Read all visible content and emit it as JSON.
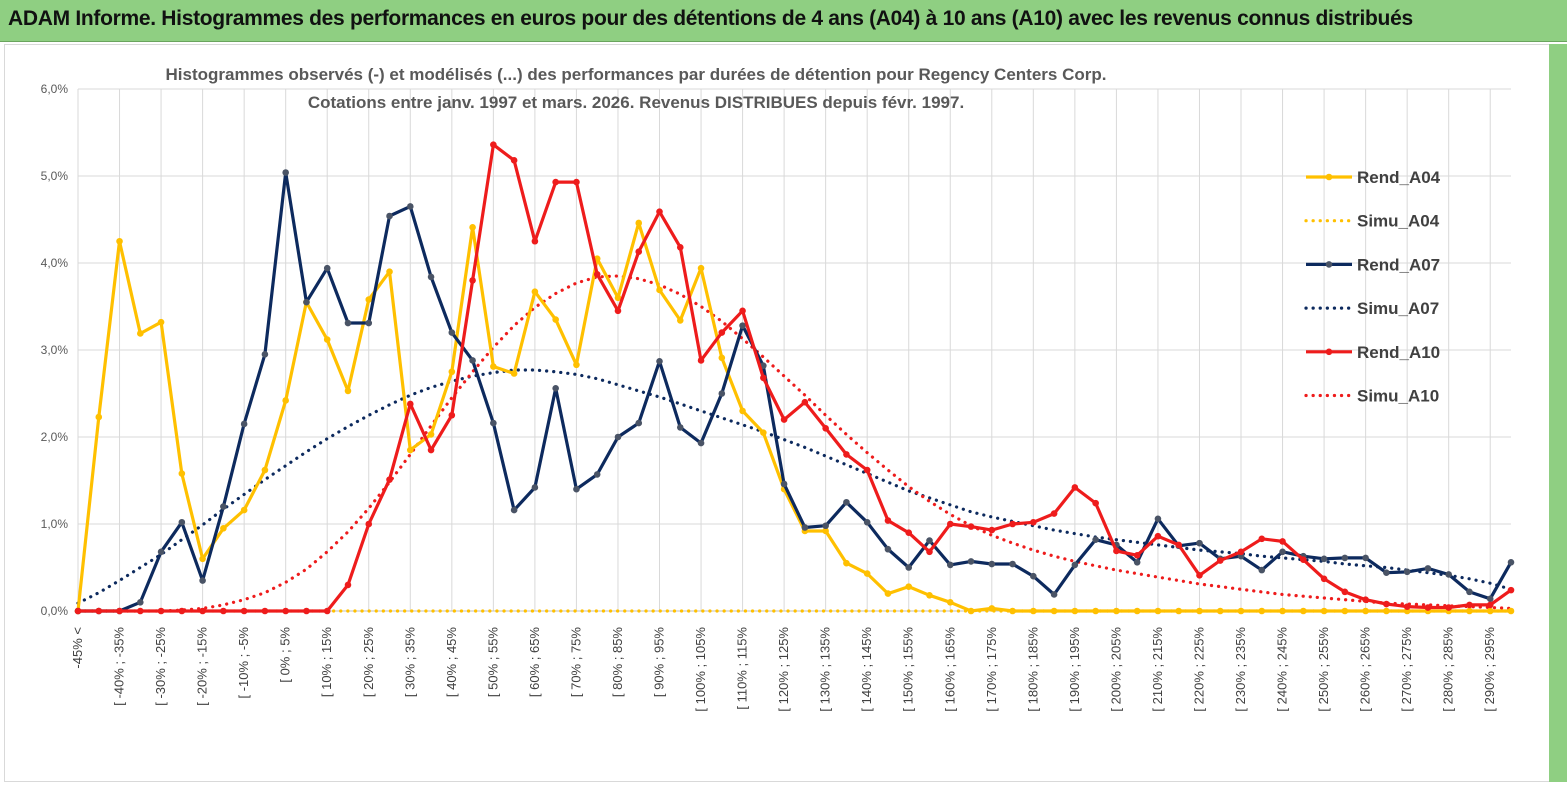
{
  "header": {
    "title": "ADAM Informe. Histogrammes des performances en euros pour des détentions de 4 ans (A04) à 10 ans (A10) avec les revenus connus distribués"
  },
  "colors": {
    "banner": "#8fcf82",
    "A04": "#ffc000",
    "A07": "#0d2a5e",
    "A10": "#ee1c1c",
    "grid": "#d9d9d9"
  },
  "chart_data": {
    "type": "line",
    "title": "Histogrammes observés (-) et modélisés (...)  des performances par durées de détention pour Regency  Centers Corp.",
    "subtitle": "Cotations entre janv. 1997 et mars. 2026. Revenus DISTRIBUES depuis févr. 1997.",
    "xlabel": "",
    "ylabel": "",
    "ylim": [
      0,
      6
    ],
    "yticks": [
      "0,0%",
      "1,0%",
      "2,0%",
      "3,0%",
      "4,0%",
      "5,0%",
      "6,0%"
    ],
    "x_tick_labels": [
      "-45% <",
      "[ -40% ; -35%",
      "[ -30% ; -25%",
      "[ -20% ; -15%",
      "[ -10% ; -5%",
      "[ 0% ; 5%",
      "[ 10% ; 15%",
      "[ 20% ; 25%",
      "[ 30% ; 35%",
      "[ 40% ; 45%",
      "[ 50% ; 55%",
      "[ 60% ; 65%",
      "[ 70% ; 75%",
      "[ 80% ; 85%",
      "[ 90% ; 95%",
      "[ 100% ; 105%",
      "[ 110% ; 115%",
      "[ 120% ; 125%",
      "[ 130% ; 135%",
      "[ 140% ; 145%",
      "[ 150% ; 155%",
      "[ 160% ; 165%",
      "[ 170% ; 175%",
      "[ 180% ; 185%",
      "[ 190% ; 195%",
      "[ 200% ; 205%",
      "[ 210% ; 215%",
      "[ 220% ; 225%",
      "[ 230% ; 235%",
      "[ 240% ; 245%",
      "[ 250% ; 255%",
      "[ 260% ; 265%",
      "[ 270% ; 275%",
      "[ 280% ; 285%",
      "[ 290% ; 295%"
    ],
    "n_points": 70,
    "legend_position": "right",
    "series": [
      {
        "name": "Rend_A04",
        "key": "A04",
        "style": "solid",
        "markers": true,
        "values": [
          0,
          2.23,
          4.25,
          3.19,
          3.32,
          1.58,
          0.6,
          0.95,
          1.16,
          1.62,
          2.42,
          3.55,
          3.12,
          2.53,
          3.58,
          3.9,
          1.85,
          2.03,
          2.75,
          4.41,
          2.81,
          2.73,
          3.67,
          3.35,
          2.83,
          4.05,
          3.6,
          4.46,
          3.69,
          3.34,
          3.94,
          2.91,
          2.3,
          2.05,
          1.4,
          0.92,
          0.92,
          0.55,
          0.43,
          0.2,
          0.28,
          0.18,
          0.1,
          0,
          0.03,
          0,
          0,
          0,
          0,
          0,
          0,
          0,
          0,
          0,
          0,
          0,
          0,
          0,
          0,
          0,
          0,
          0,
          0,
          0,
          0,
          0,
          0,
          0,
          0,
          0
        ]
      },
      {
        "name": "Simu_A04",
        "key": "A04",
        "style": "dotted",
        "markers": false,
        "values": [
          0,
          0,
          0,
          0,
          0,
          0,
          0,
          0,
          0,
          0,
          0,
          0,
          0,
          0,
          0,
          0,
          0,
          0,
          0,
          0,
          0,
          0,
          0,
          0,
          0,
          0,
          0,
          0,
          0,
          0,
          0,
          0,
          0,
          0,
          0,
          0,
          0,
          0,
          0,
          0,
          0,
          0,
          0,
          0,
          0,
          0,
          0,
          0,
          0,
          0,
          0,
          0,
          0,
          0,
          0,
          0,
          0,
          0,
          0,
          0,
          0,
          0,
          0,
          0,
          0,
          0,
          0,
          0,
          0,
          0
        ]
      },
      {
        "name": "Rend_A07",
        "key": "A07",
        "style": "solid",
        "markers": true,
        "values": [
          0,
          0,
          0,
          0.1,
          0.68,
          1.02,
          0.35,
          1.2,
          2.15,
          2.95,
          5.04,
          3.55,
          3.94,
          3.31,
          3.31,
          4.54,
          4.65,
          3.84,
          3.2,
          2.88,
          2.16,
          1.16,
          1.42,
          2.56,
          1.4,
          1.57,
          2.0,
          2.16,
          2.87,
          2.11,
          1.93,
          2.5,
          3.28,
          2.82,
          1.46,
          0.96,
          0.98,
          1.25,
          1.02,
          0.71,
          0.5,
          0.81,
          0.53,
          0.57,
          0.54,
          0.54,
          0.4,
          0.19,
          0.53,
          0.82,
          0.76,
          0.56,
          1.06,
          0.75,
          0.78,
          0.6,
          0.63,
          0.47,
          0.68,
          0.63,
          0.6,
          0.61,
          0.61,
          0.44,
          0.45,
          0.49,
          0.42,
          0.22,
          0.14,
          0.56
        ]
      },
      {
        "name": "Simu_A07",
        "key": "A07",
        "style": "dotted",
        "markers": false,
        "values": [
          0.09,
          0.21,
          0.35,
          0.5,
          0.65,
          0.82,
          0.99,
          1.17,
          1.34,
          1.51,
          1.67,
          1.83,
          1.98,
          2.12,
          2.25,
          2.37,
          2.48,
          2.57,
          2.64,
          2.7,
          2.74,
          2.77,
          2.77,
          2.75,
          2.72,
          2.67,
          2.6,
          2.53,
          2.46,
          2.38,
          2.3,
          2.22,
          2.14,
          2.06,
          1.97,
          1.88,
          1.78,
          1.68,
          1.58,
          1.48,
          1.38,
          1.3,
          1.22,
          1.14,
          1.08,
          1.03,
          0.98,
          0.93,
          0.89,
          0.85,
          0.82,
          0.79,
          0.76,
          0.73,
          0.7,
          0.68,
          0.66,
          0.63,
          0.61,
          0.59,
          0.57,
          0.54,
          0.52,
          0.5,
          0.47,
          0.44,
          0.41,
          0.37,
          0.32,
          0.25
        ]
      },
      {
        "name": "Rend_A10",
        "key": "A10",
        "style": "solid",
        "markers": true,
        "values": [
          0,
          0,
          0,
          0,
          0,
          0,
          0,
          0,
          0,
          0,
          0,
          0,
          0,
          0.3,
          1.0,
          1.51,
          2.38,
          1.85,
          2.25,
          3.8,
          5.36,
          5.18,
          4.25,
          4.93,
          4.93,
          3.87,
          3.45,
          4.13,
          4.59,
          4.18,
          2.88,
          3.2,
          3.45,
          2.68,
          2.2,
          2.4,
          2.1,
          1.8,
          1.62,
          1.04,
          0.9,
          0.68,
          1.0,
          0.97,
          0.93,
          1.0,
          1.02,
          1.12,
          1.42,
          1.24,
          0.69,
          0.64,
          0.86,
          0.76,
          0.41,
          0.58,
          0.68,
          0.83,
          0.8,
          0.59,
          0.37,
          0.22,
          0.13,
          0.08,
          0.05,
          0.04,
          0.04,
          0.07,
          0.07,
          0.24
        ]
      },
      {
        "name": "Simu_A10",
        "key": "A10",
        "style": "dotted",
        "markers": false,
        "values": [
          0,
          0,
          0,
          0,
          0,
          0.01,
          0.03,
          0.07,
          0.13,
          0.21,
          0.33,
          0.48,
          0.68,
          0.91,
          1.18,
          1.48,
          1.8,
          2.13,
          2.45,
          2.75,
          3.03,
          3.28,
          3.49,
          3.65,
          3.77,
          3.84,
          3.85,
          3.82,
          3.75,
          3.64,
          3.5,
          3.33,
          3.13,
          2.92,
          2.7,
          2.48,
          2.25,
          2.03,
          1.82,
          1.62,
          1.43,
          1.26,
          1.11,
          0.98,
          0.87,
          0.78,
          0.7,
          0.63,
          0.57,
          0.52,
          0.47,
          0.43,
          0.39,
          0.35,
          0.31,
          0.28,
          0.25,
          0.22,
          0.19,
          0.17,
          0.15,
          0.13,
          0.11,
          0.09,
          0.08,
          0.07,
          0.06,
          0.05,
          0.04,
          0.03
        ]
      }
    ]
  }
}
